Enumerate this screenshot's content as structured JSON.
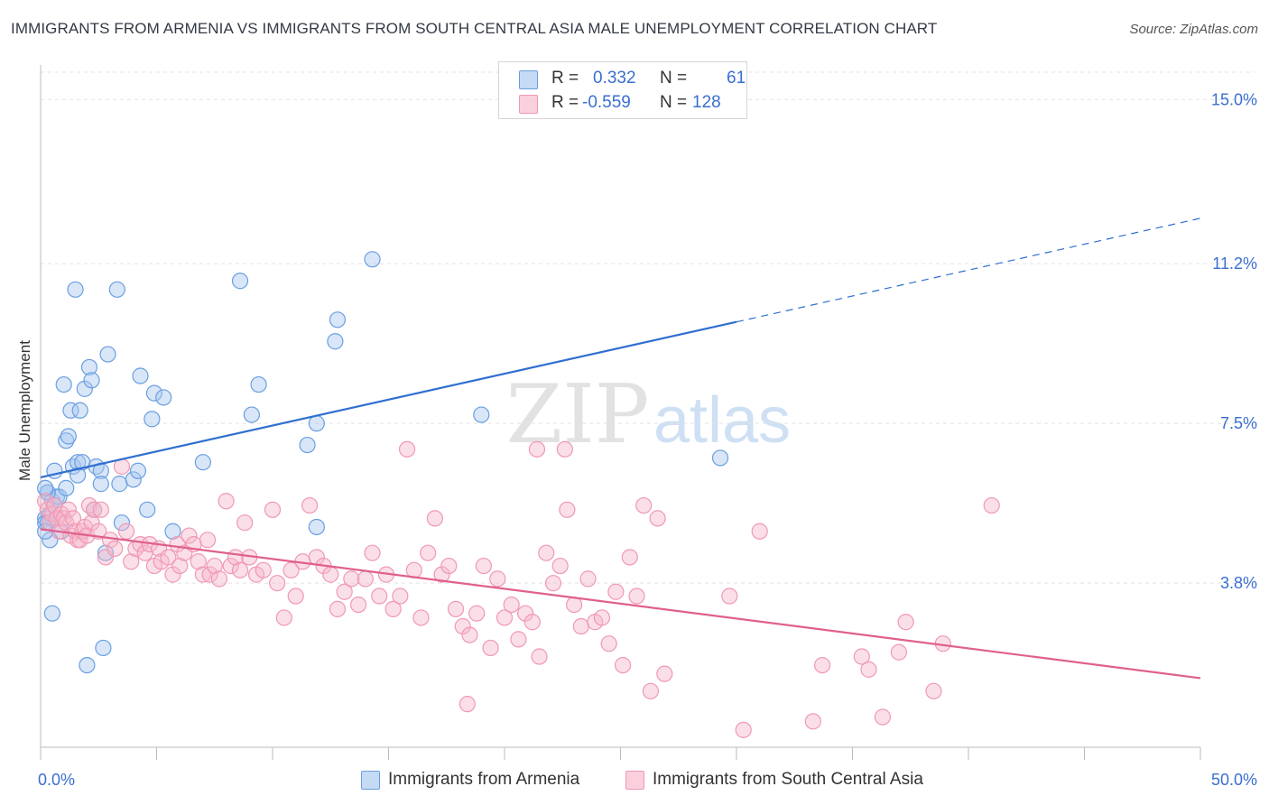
{
  "title": "IMMIGRANTS FROM ARMENIA VS IMMIGRANTS FROM SOUTH CENTRAL ASIA MALE UNEMPLOYMENT CORRELATION CHART",
  "source": "Source: ZipAtlas.com",
  "watermark": {
    "zip": "ZIP",
    "atlas": "atlas"
  },
  "legend": {
    "rows": [
      {
        "r_label": "R =",
        "r_value": "0.332",
        "n_label": "N =",
        "n_value": "61",
        "color": "#a8c8f0"
      },
      {
        "r_label": "R =",
        "r_value": "-0.559",
        "n_label": "N =",
        "n_value": "128",
        "color": "#f7b8cc"
      }
    ]
  },
  "chart_data": {
    "type": "scatter",
    "title": "IMMIGRANTS FROM ARMENIA VS IMMIGRANTS FROM SOUTH CENTRAL ASIA MALE UNEMPLOYMENT CORRELATION CHART",
    "xlabel": "",
    "ylabel": "Male Unemployment",
    "xlim": [
      0,
      50
    ],
    "ylim": [
      0,
      15.8
    ],
    "x_tick_labels": [
      {
        "value": 0,
        "label": "0.0%"
      },
      {
        "value": 50,
        "label": "50.0%"
      }
    ],
    "y_tick_labels": [
      {
        "value": 3.8,
        "label": "3.8%"
      },
      {
        "value": 7.5,
        "label": "7.5%"
      },
      {
        "value": 11.2,
        "label": "11.2%"
      },
      {
        "value": 15.0,
        "label": "15.0%"
      }
    ],
    "grid": true,
    "legend_position": "top-center",
    "series": [
      {
        "name": "Immigrants from Armenia",
        "color": "#6a9fe0",
        "line_color": "#2f6fd0",
        "trend": {
          "x": [
            0,
            30
          ],
          "y": [
            6.25,
            9.85
          ],
          "dashed_to": [
            50,
            12.25
          ]
        },
        "points": [
          [
            0.2,
            5.3
          ],
          [
            0.3,
            5.9
          ],
          [
            0.4,
            4.8
          ],
          [
            0.5,
            5.7
          ],
          [
            0.5,
            3.1
          ],
          [
            0.6,
            6.4
          ],
          [
            0.7,
            5.8
          ],
          [
            0.8,
            5.8
          ],
          [
            0.9,
            5.0
          ],
          [
            1.0,
            8.4
          ],
          [
            1.1,
            7.1
          ],
          [
            1.1,
            6.0
          ],
          [
            1.2,
            7.2
          ],
          [
            1.3,
            7.8
          ],
          [
            1.4,
            6.5
          ],
          [
            1.5,
            10.6
          ],
          [
            1.6,
            6.6
          ],
          [
            1.6,
            6.3
          ],
          [
            1.7,
            7.8
          ],
          [
            1.8,
            6.6
          ],
          [
            1.9,
            8.3
          ],
          [
            2.0,
            1.9
          ],
          [
            2.1,
            8.8
          ],
          [
            2.2,
            8.5
          ],
          [
            2.3,
            5.5
          ],
          [
            2.4,
            6.5
          ],
          [
            2.6,
            6.4
          ],
          [
            2.6,
            6.1
          ],
          [
            2.7,
            2.3
          ],
          [
            2.8,
            4.5
          ],
          [
            2.9,
            9.1
          ],
          [
            3.3,
            10.6
          ],
          [
            3.4,
            6.1
          ],
          [
            3.5,
            5.2
          ],
          [
            4.0,
            6.2
          ],
          [
            4.2,
            6.4
          ],
          [
            4.3,
            8.6
          ],
          [
            4.6,
            5.5
          ],
          [
            4.8,
            7.6
          ],
          [
            4.9,
            8.2
          ],
          [
            5.3,
            8.1
          ],
          [
            5.7,
            5.0
          ],
          [
            7.0,
            6.6
          ],
          [
            8.6,
            10.8
          ],
          [
            9.1,
            7.7
          ],
          [
            9.4,
            8.4
          ],
          [
            11.5,
            7.0
          ],
          [
            11.9,
            5.1
          ],
          [
            11.9,
            7.5
          ],
          [
            12.7,
            9.4
          ],
          [
            12.8,
            9.9
          ],
          [
            14.3,
            11.3
          ],
          [
            19.0,
            7.7
          ],
          [
            29.3,
            6.7
          ],
          [
            0.3,
            5.9
          ],
          [
            0.4,
            5.4
          ],
          [
            0.6,
            5.6
          ],
          [
            0.2,
            6.0
          ],
          [
            0.2,
            5.2
          ],
          [
            0.3,
            5.2
          ],
          [
            0.2,
            5.0
          ]
        ]
      },
      {
        "name": "Immigrants from South Central Asia",
        "color": "#f098b4",
        "line_color": "#e0608c",
        "trend": {
          "x": [
            0,
            50
          ],
          "y": [
            5.05,
            1.6
          ]
        },
        "points": [
          [
            0.2,
            5.7
          ],
          [
            0.3,
            5.5
          ],
          [
            0.4,
            5.2
          ],
          [
            0.5,
            5.4
          ],
          [
            0.6,
            5.6
          ],
          [
            0.7,
            5.3
          ],
          [
            0.8,
            5.0
          ],
          [
            0.9,
            5.4
          ],
          [
            1.0,
            5.3
          ],
          [
            1.1,
            5.2
          ],
          [
            1.2,
            5.5
          ],
          [
            1.3,
            4.9
          ],
          [
            1.4,
            5.3
          ],
          [
            1.5,
            5.0
          ],
          [
            1.6,
            4.8
          ],
          [
            1.7,
            4.8
          ],
          [
            1.8,
            5.0
          ],
          [
            1.9,
            5.1
          ],
          [
            2.0,
            4.9
          ],
          [
            2.1,
            5.6
          ],
          [
            2.2,
            5.2
          ],
          [
            2.3,
            5.5
          ],
          [
            2.5,
            5.0
          ],
          [
            2.6,
            5.5
          ],
          [
            2.8,
            4.4
          ],
          [
            3.0,
            4.8
          ],
          [
            3.2,
            4.6
          ],
          [
            3.5,
            6.5
          ],
          [
            3.7,
            5.0
          ],
          [
            3.9,
            4.3
          ],
          [
            4.1,
            4.6
          ],
          [
            4.3,
            4.7
          ],
          [
            4.5,
            4.5
          ],
          [
            4.7,
            4.7
          ],
          [
            4.9,
            4.2
          ],
          [
            5.1,
            4.6
          ],
          [
            5.2,
            4.3
          ],
          [
            5.5,
            4.4
          ],
          [
            5.7,
            4.0
          ],
          [
            5.9,
            4.7
          ],
          [
            6.0,
            4.2
          ],
          [
            6.2,
            4.5
          ],
          [
            6.4,
            4.9
          ],
          [
            6.6,
            4.7
          ],
          [
            6.8,
            4.3
          ],
          [
            7.0,
            4.0
          ],
          [
            7.2,
            4.8
          ],
          [
            7.3,
            4.0
          ],
          [
            7.5,
            4.2
          ],
          [
            7.7,
            3.9
          ],
          [
            8.0,
            5.7
          ],
          [
            8.2,
            4.2
          ],
          [
            8.4,
            4.4
          ],
          [
            8.6,
            4.1
          ],
          [
            8.8,
            5.2
          ],
          [
            9.0,
            4.4
          ],
          [
            9.3,
            4.0
          ],
          [
            9.6,
            4.1
          ],
          [
            10.0,
            5.5
          ],
          [
            10.2,
            3.8
          ],
          [
            10.5,
            3.0
          ],
          [
            10.8,
            4.1
          ],
          [
            11.0,
            3.5
          ],
          [
            11.3,
            4.3
          ],
          [
            11.6,
            5.6
          ],
          [
            11.9,
            4.4
          ],
          [
            12.2,
            4.2
          ],
          [
            12.5,
            4.0
          ],
          [
            12.8,
            3.2
          ],
          [
            13.1,
            3.6
          ],
          [
            13.4,
            3.9
          ],
          [
            13.7,
            3.3
          ],
          [
            14.0,
            3.9
          ],
          [
            14.3,
            4.5
          ],
          [
            14.6,
            3.5
          ],
          [
            14.9,
            4.0
          ],
          [
            15.2,
            3.2
          ],
          [
            15.5,
            3.5
          ],
          [
            15.8,
            6.9
          ],
          [
            16.1,
            4.1
          ],
          [
            16.4,
            3.0
          ],
          [
            16.7,
            4.5
          ],
          [
            17.0,
            5.3
          ],
          [
            17.3,
            4.0
          ],
          [
            17.6,
            4.2
          ],
          [
            17.9,
            3.2
          ],
          [
            18.2,
            2.8
          ],
          [
            18.5,
            2.6
          ],
          [
            18.8,
            3.1
          ],
          [
            19.1,
            4.2
          ],
          [
            19.4,
            2.3
          ],
          [
            19.7,
            3.9
          ],
          [
            20.0,
            3.0
          ],
          [
            20.3,
            3.3
          ],
          [
            20.6,
            2.5
          ],
          [
            20.9,
            3.1
          ],
          [
            21.2,
            2.9
          ],
          [
            21.5,
            2.1
          ],
          [
            21.8,
            4.5
          ],
          [
            22.1,
            3.8
          ],
          [
            22.4,
            4.2
          ],
          [
            22.7,
            5.5
          ],
          [
            23.0,
            3.3
          ],
          [
            23.3,
            2.8
          ],
          [
            23.6,
            3.9
          ],
          [
            23.9,
            2.9
          ],
          [
            24.2,
            3.0
          ],
          [
            24.5,
            2.4
          ],
          [
            24.8,
            3.6
          ],
          [
            25.1,
            1.9
          ],
          [
            25.4,
            4.4
          ],
          [
            25.7,
            3.5
          ],
          [
            26.0,
            5.6
          ],
          [
            26.3,
            1.3
          ],
          [
            26.6,
            5.3
          ],
          [
            26.9,
            1.7
          ],
          [
            29.7,
            3.5
          ],
          [
            30.3,
            0.4
          ],
          [
            31.0,
            5.0
          ],
          [
            33.3,
            0.6
          ],
          [
            33.7,
            1.9
          ],
          [
            35.4,
            2.1
          ],
          [
            35.7,
            1.8
          ],
          [
            36.3,
            0.7
          ],
          [
            37.0,
            2.2
          ],
          [
            37.3,
            2.9
          ],
          [
            38.5,
            1.3
          ],
          [
            38.9,
            2.4
          ],
          [
            41.0,
            5.6
          ],
          [
            18.4,
            1.0
          ],
          [
            21.4,
            6.9
          ],
          [
            22.6,
            6.9
          ]
        ]
      }
    ]
  }
}
